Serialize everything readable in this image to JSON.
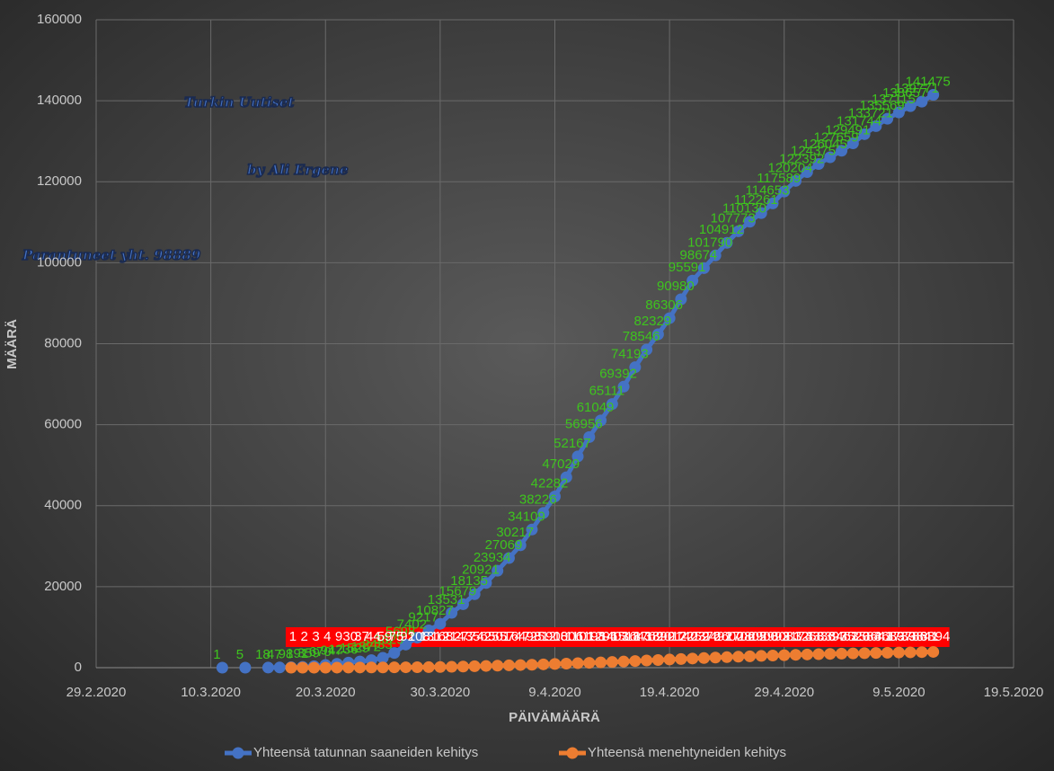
{
  "chart_data": {
    "type": "line",
    "annotations": [
      "Turkin Uutiset",
      "by Ali Ergene",
      "Parantuneet yht. 98889"
    ],
    "y_label": "MÄÄRÄ",
    "x_label": "PÄIVÄMÄÄRÄ",
    "x": [
      "2020-03-11",
      "2020-03-12",
      "2020-03-13",
      "2020-03-14",
      "2020-03-15",
      "2020-03-16",
      "2020-03-17",
      "2020-03-18",
      "2020-03-19",
      "2020-03-20",
      "2020-03-21",
      "2020-03-22",
      "2020-03-23",
      "2020-03-24",
      "2020-03-25",
      "2020-03-26",
      "2020-03-27",
      "2020-03-28",
      "2020-03-29",
      "2020-03-30",
      "2020-03-31",
      "2020-04-01",
      "2020-04-02",
      "2020-04-03",
      "2020-04-04",
      "2020-04-05",
      "2020-04-06",
      "2020-04-07",
      "2020-04-08",
      "2020-04-09",
      "2020-04-10",
      "2020-04-11",
      "2020-04-12",
      "2020-04-13",
      "2020-04-14",
      "2020-04-15",
      "2020-04-16",
      "2020-04-17",
      "2020-04-18",
      "2020-04-19",
      "2020-04-20",
      "2020-04-21",
      "2020-04-22",
      "2020-04-23",
      "2020-04-24",
      "2020-04-25",
      "2020-04-26",
      "2020-04-27",
      "2020-04-28",
      "2020-04-29",
      "2020-04-30",
      "2020-05-01",
      "2020-05-02",
      "2020-05-03",
      "2020-05-04",
      "2020-05-05",
      "2020-05-06",
      "2020-05-07",
      "2020-05-08",
      "2020-05-09",
      "2020-05-10",
      "2020-05-11",
      "2020-05-12"
    ],
    "series": [
      {
        "name": "Yhteensä tatunnan saaneiden kehitys",
        "color": "#4472c4",
        "label_color": "#3ec41e",
        "values": [
          1,
          null,
          5,
          null,
          18,
          47,
          98,
          191,
          359,
          670,
          947,
          1236,
          1529,
          1872,
          2433,
          3629,
          5698,
          7402,
          9217,
          10827,
          13531,
          15679,
          18135,
          20921,
          23934,
          27069,
          30217,
          34109,
          38226,
          42282,
          47029,
          52167,
          56956,
          61049,
          65111,
          69392,
          74193,
          78546,
          82329,
          86306,
          90980,
          95591,
          98674,
          101790,
          104912,
          107773,
          110130,
          112261,
          114653,
          117589,
          120204,
          122392,
          124375,
          126045,
          127659,
          129491,
          131744,
          133721,
          135569,
          137115,
          138657,
          139771,
          141475
        ]
      },
      {
        "name": "Yhteensä menehtyneiden kehitys",
        "color": "#ed7d31",
        "label_color": "#ffffff",
        "values": [
          null,
          null,
          null,
          null,
          null,
          null,
          1,
          2,
          3,
          4,
          9,
          30,
          37,
          44,
          59,
          75,
          92,
          108,
          131,
          168,
          214,
          277,
          356,
          425,
          501,
          574,
          649,
          725,
          812,
          908,
          1006,
          1101,
          1198,
          1296,
          1403,
          1518,
          1643,
          1769,
          1890,
          2017,
          2140,
          2259,
          2376,
          2491,
          2600,
          2706,
          2805,
          2900,
          2992,
          3081,
          3174,
          3258,
          3336,
          3397,
          3461,
          3520,
          3584,
          3641,
          3689,
          3739,
          3786,
          3841,
          3894
        ]
      }
    ],
    "xlim": [
      "2020-02-29",
      "2020-05-19"
    ],
    "xticks": [
      {
        "value": "2020-02-29",
        "label": "29.2.2020"
      },
      {
        "value": "2020-03-10",
        "label": "10.3.2020"
      },
      {
        "value": "2020-03-20",
        "label": "20.3.2020"
      },
      {
        "value": "2020-03-30",
        "label": "30.3.2020"
      },
      {
        "value": "2020-04-09",
        "label": "9.4.2020"
      },
      {
        "value": "2020-04-19",
        "label": "19.4.2020"
      },
      {
        "value": "2020-04-29",
        "label": "29.4.2020"
      },
      {
        "value": "2020-05-09",
        "label": "9.5.2020"
      },
      {
        "value": "2020-05-19",
        "label": "19.5.2020"
      }
    ],
    "ylim": [
      0,
      160000
    ],
    "yticks": [
      0,
      20000,
      40000,
      60000,
      80000,
      100000,
      120000,
      140000,
      160000
    ],
    "grid": true,
    "legend": "bottom"
  }
}
